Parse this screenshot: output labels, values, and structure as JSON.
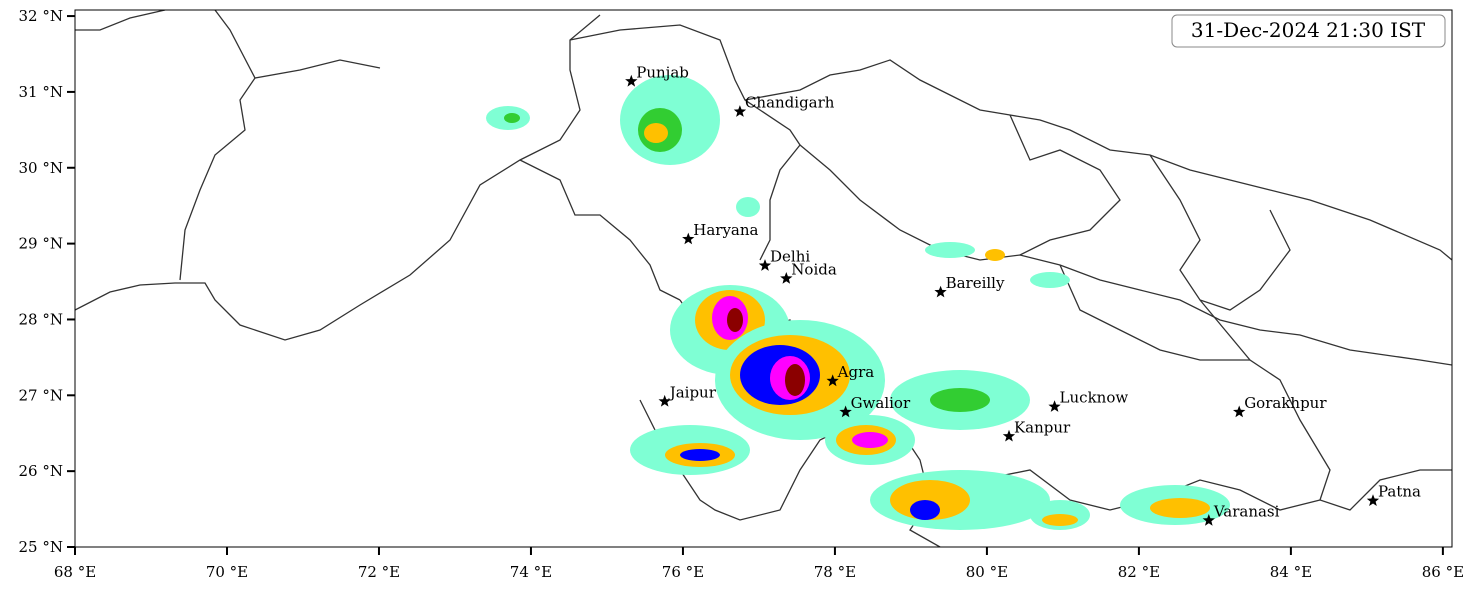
{
  "map": {
    "timestamp": "31-Dec-2024 21:30 IST",
    "xlim": [
      68,
      86.12
    ],
    "ylim": [
      25,
      32.08
    ],
    "xticks": [
      {
        "value": 68,
        "label": "68 °E"
      },
      {
        "value": 70,
        "label": "70 °E"
      },
      {
        "value": 72,
        "label": "72 °E"
      },
      {
        "value": 74,
        "label": "74 °E"
      },
      {
        "value": 76,
        "label": "76 °E"
      },
      {
        "value": 78,
        "label": "78 °E"
      },
      {
        "value": 80,
        "label": "80 °E"
      },
      {
        "value": 82,
        "label": "82 °E"
      },
      {
        "value": 84,
        "label": "84 °E"
      },
      {
        "value": 86,
        "label": "86 °E"
      }
    ],
    "yticks": [
      {
        "value": 25,
        "label": "25 °N"
      },
      {
        "value": 26,
        "label": "26 °N"
      },
      {
        "value": 27,
        "label": "27 °N"
      },
      {
        "value": 28,
        "label": "28 °N"
      },
      {
        "value": 29,
        "label": "29 °N"
      },
      {
        "value": 30,
        "label": "30 °N"
      },
      {
        "value": 31,
        "label": "31 °N"
      },
      {
        "value": 32,
        "label": "32 °N"
      }
    ],
    "cities": [
      {
        "name": "Punjab",
        "lon": 75.32,
        "lat": 31.14
      },
      {
        "name": "Chandigarh",
        "lon": 76.75,
        "lat": 30.74
      },
      {
        "name": "Haryana",
        "lon": 76.07,
        "lat": 29.06
      },
      {
        "name": "Delhi",
        "lon": 77.08,
        "lat": 28.71
      },
      {
        "name": "Noida",
        "lon": 77.36,
        "lat": 28.54
      },
      {
        "name": "Bareilly",
        "lon": 79.39,
        "lat": 28.36
      },
      {
        "name": "Agra",
        "lon": 77.97,
        "lat": 27.19
      },
      {
        "name": "Jaipur",
        "lon": 75.76,
        "lat": 26.92
      },
      {
        "name": "Gwalior",
        "lon": 78.14,
        "lat": 26.78
      },
      {
        "name": "Lucknow",
        "lon": 80.89,
        "lat": 26.85
      },
      {
        "name": "Gorakhpur",
        "lon": 83.32,
        "lat": 26.78
      },
      {
        "name": "Kanpur",
        "lon": 80.29,
        "lat": 26.46
      },
      {
        "name": "Patna",
        "lon": 85.08,
        "lat": 25.61
      },
      {
        "name": "Varanasi",
        "lon": 82.92,
        "lat": 25.35
      }
    ]
  }
}
